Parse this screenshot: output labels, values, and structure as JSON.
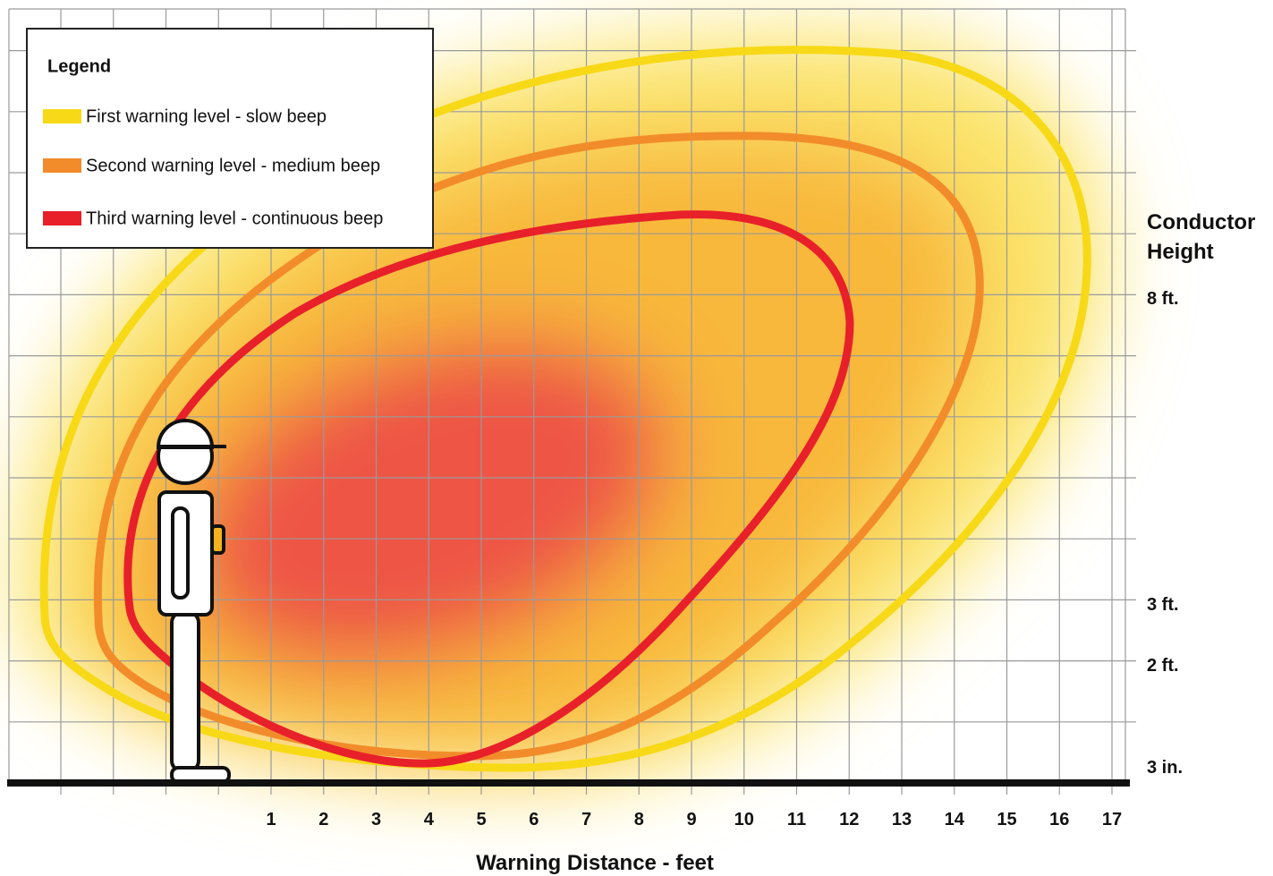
{
  "legend": {
    "title": "Legend",
    "items": [
      {
        "label": "First warning level - slow beep",
        "color": "#f7d917"
      },
      {
        "label": "Second warning level - medium beep",
        "color": "#f28c2a"
      },
      {
        "label": "Third warning level - continuous beep",
        "color": "#e8202a"
      }
    ]
  },
  "x_axis": {
    "label": "Warning Distance - feet",
    "ticks": [
      1,
      2,
      3,
      4,
      5,
      6,
      7,
      8,
      9,
      10,
      11,
      12,
      13,
      14,
      15,
      16,
      17
    ]
  },
  "y_axis": {
    "title": [
      "Conductor",
      "Height"
    ],
    "ticks": [
      "8 ft.",
      "3 ft.",
      "2 ft.",
      "3 in."
    ]
  }
}
